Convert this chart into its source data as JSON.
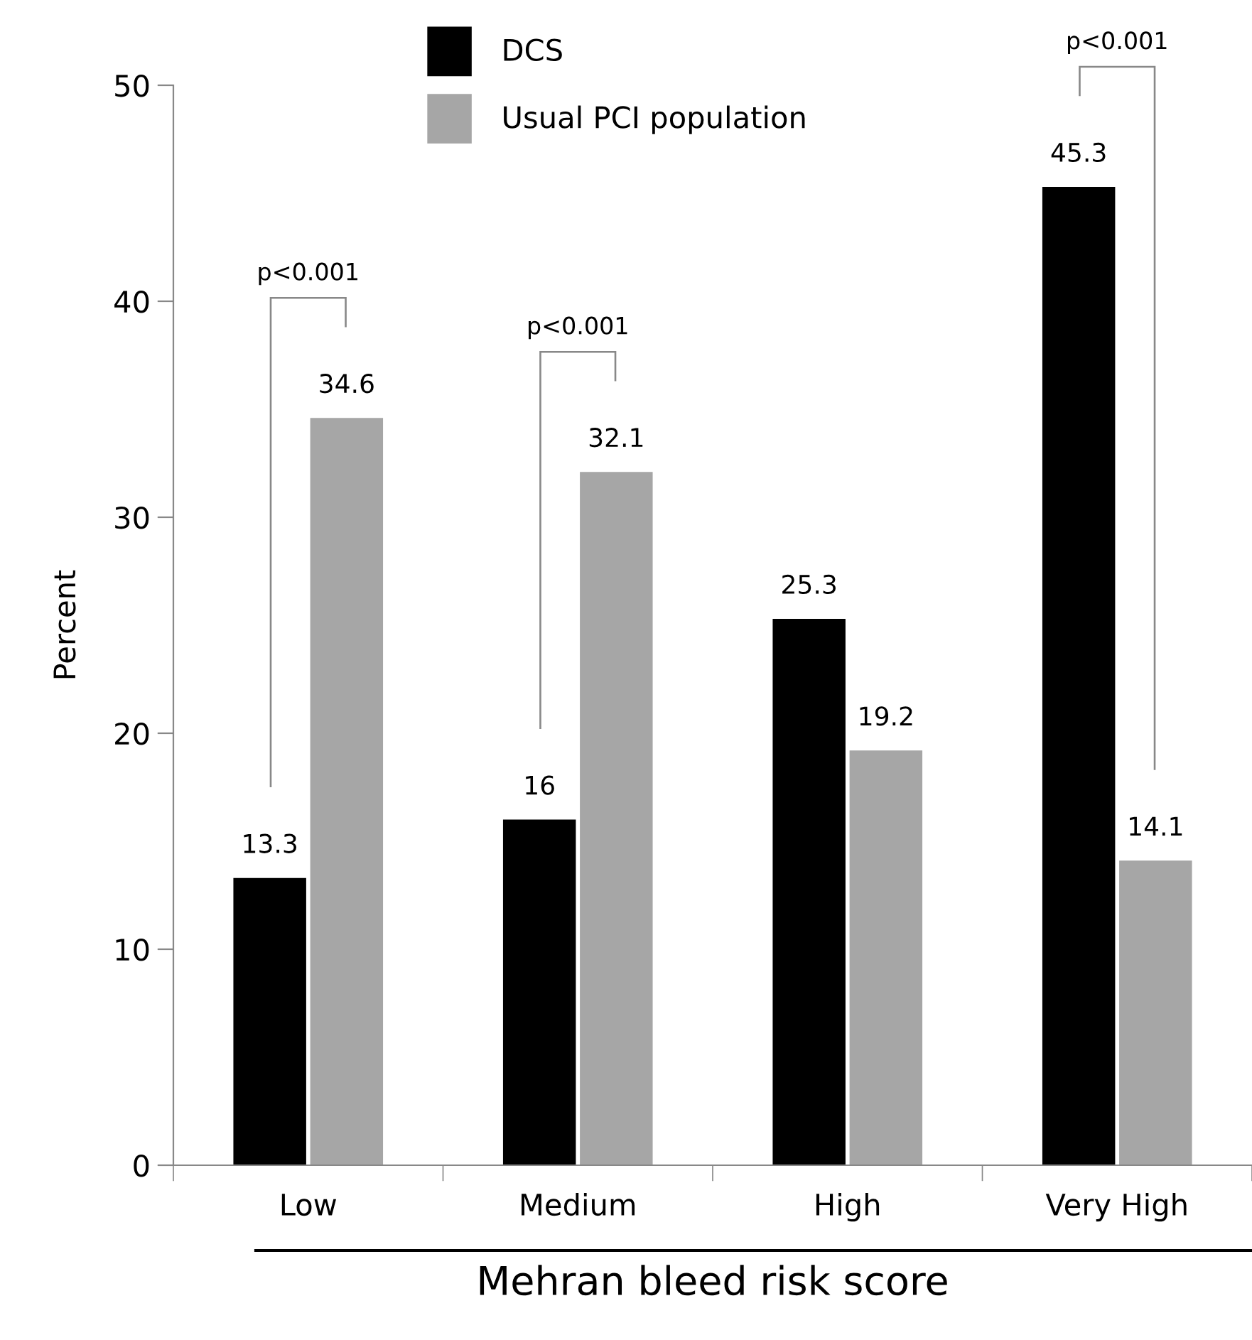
{
  "chart_data": {
    "type": "bar",
    "categories": [
      "Low",
      "Medium",
      "High",
      "Very High"
    ],
    "series": [
      {
        "name": "DCS",
        "color": "#000000",
        "values": [
          13.3,
          16,
          25.3,
          45.3
        ]
      },
      {
        "name": "Usual PCI population",
        "color": "#a6a6a6",
        "values": [
          34.6,
          32.1,
          19.2,
          14.1
        ]
      }
    ],
    "xlabel": "Mehran bleed risk score",
    "ylabel": "Percent",
    "ylim": [
      0,
      50
    ],
    "yticks": [
      0,
      10,
      20,
      30,
      40,
      50
    ],
    "data_labels": true,
    "legend": "top",
    "grid": false,
    "annotations": [
      "p<0.001",
      "p<0.001",
      "p<0.001"
    ]
  }
}
